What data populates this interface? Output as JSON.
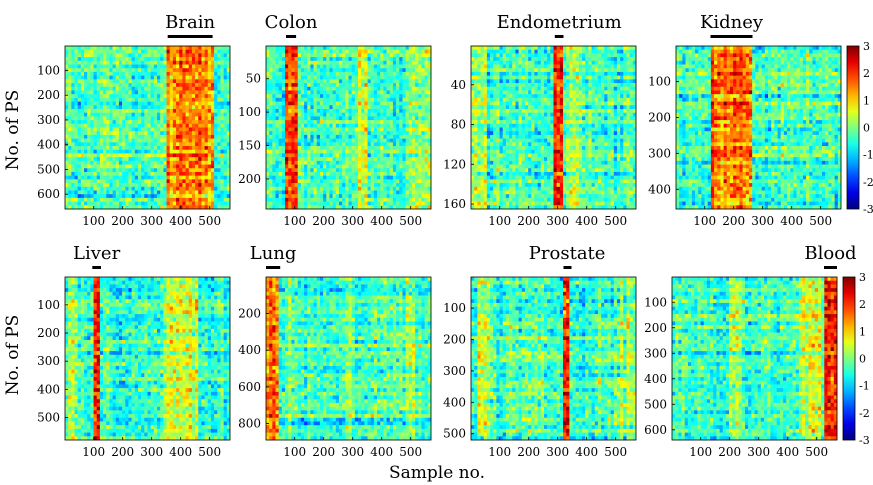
{
  "figure": {
    "ylabel": "No. of PS",
    "xlabel": "Sample no."
  },
  "chart_data": [
    {
      "type": "heatmap",
      "title": "Brain",
      "xlabel": "",
      "ylabel": "No. of PS",
      "x_ticks": [
        100,
        200,
        300,
        400,
        500
      ],
      "y_ticks": [
        100,
        200,
        300,
        400,
        500,
        600
      ],
      "xlim": [
        1,
        570
      ],
      "ylim": [
        1,
        660
      ],
      "highlight_samples": [
        355,
        510
      ],
      "bands": [
        [
          355,
          510,
          1.8
        ],
        [
          0,
          18,
          0.2
        ]
      ]
    },
    {
      "type": "heatmap",
      "title": "Colon",
      "xlabel": "",
      "ylabel": "",
      "x_ticks": [
        100,
        200,
        300,
        400,
        500
      ],
      "y_ticks": [
        50,
        100,
        150,
        200
      ],
      "xlim": [
        1,
        570
      ],
      "ylim": [
        1,
        245
      ],
      "highlight_samples": [
        70,
        105
      ],
      "bands": [
        [
          70,
          105,
          2.2
        ],
        [
          320,
          350,
          0.9
        ],
        [
          490,
          570,
          0.6
        ]
      ]
    },
    {
      "type": "heatmap",
      "title": "Endometrium",
      "xlabel": "",
      "ylabel": "",
      "x_ticks": [
        100,
        200,
        300,
        400,
        500
      ],
      "y_ticks": [
        40,
        80,
        120,
        160
      ],
      "xlim": [
        1,
        570
      ],
      "ylim": [
        1,
        165
      ],
      "highlight_samples": [
        290,
        320
      ],
      "bands": [
        [
          290,
          320,
          2.3
        ],
        [
          0,
          60,
          0.6
        ],
        [
          330,
          380,
          0.5
        ]
      ]
    },
    {
      "type": "heatmap",
      "title": "Kidney",
      "xlabel": "",
      "ylabel": "",
      "x_ticks": [
        100,
        200,
        300,
        400,
        500
      ],
      "y_ticks": [
        100,
        200,
        300,
        400
      ],
      "xlim": [
        1,
        570
      ],
      "ylim": [
        1,
        455
      ],
      "highlight_samples": [
        120,
        265
      ],
      "bands": [
        [
          120,
          265,
          1.9
        ]
      ]
    },
    {
      "type": "heatmap",
      "title": "Liver",
      "xlabel": "",
      "ylabel": "No. of PS",
      "x_ticks": [
        100,
        200,
        300,
        400,
        500
      ],
      "y_ticks": [
        100,
        200,
        300,
        400,
        500
      ],
      "xlim": [
        1,
        570
      ],
      "ylim": [
        1,
        580
      ],
      "highlight_samples": [
        95,
        125
      ],
      "bands": [
        [
          95,
          125,
          2.6
        ],
        [
          340,
          460,
          0.9
        ],
        [
          10,
          40,
          0.5
        ]
      ]
    },
    {
      "type": "heatmap",
      "title": "Lung",
      "xlabel": "",
      "ylabel": "",
      "x_ticks": [
        100,
        200,
        300,
        400,
        500
      ],
      "y_ticks": [
        200,
        400,
        600,
        800
      ],
      "xlim": [
        1,
        570
      ],
      "ylim": [
        1,
        890
      ],
      "highlight_samples": [
        1,
        50
      ],
      "bands": [
        [
          1,
          50,
          2.1
        ],
        [
          270,
          300,
          0.6
        ],
        [
          480,
          520,
          0.5
        ]
      ]
    },
    {
      "type": "heatmap",
      "title": "Prostate",
      "xlabel": "Sample no.",
      "ylabel": "",
      "x_ticks": [
        100,
        200,
        300,
        400,
        500
      ],
      "y_ticks": [
        100,
        200,
        300,
        400,
        500
      ],
      "xlim": [
        1,
        570
      ],
      "ylim": [
        1,
        520
      ],
      "highlight_samples": [
        320,
        345
      ],
      "bands": [
        [
          320,
          345,
          2.6
        ],
        [
          20,
          70,
          0.7
        ],
        [
          500,
          570,
          0.4
        ]
      ]
    },
    {
      "type": "heatmap",
      "title": "Blood",
      "xlabel": "",
      "ylabel": "",
      "x_ticks": [
        100,
        200,
        300,
        400,
        500
      ],
      "y_ticks": [
        100,
        200,
        300,
        400,
        500,
        600
      ],
      "xlim": [
        1,
        570
      ],
      "ylim": [
        1,
        640
      ],
      "highlight_samples": [
        525,
        570
      ],
      "bands": [
        [
          525,
          570,
          2.4
        ],
        [
          200,
          240,
          0.6
        ],
        [
          440,
          520,
          0.8
        ]
      ]
    }
  ],
  "colorbar": {
    "ticks": [
      3,
      2,
      1,
      0,
      -1,
      -2,
      -3
    ],
    "range": [
      -3,
      3
    ],
    "colormap": "jet"
  }
}
